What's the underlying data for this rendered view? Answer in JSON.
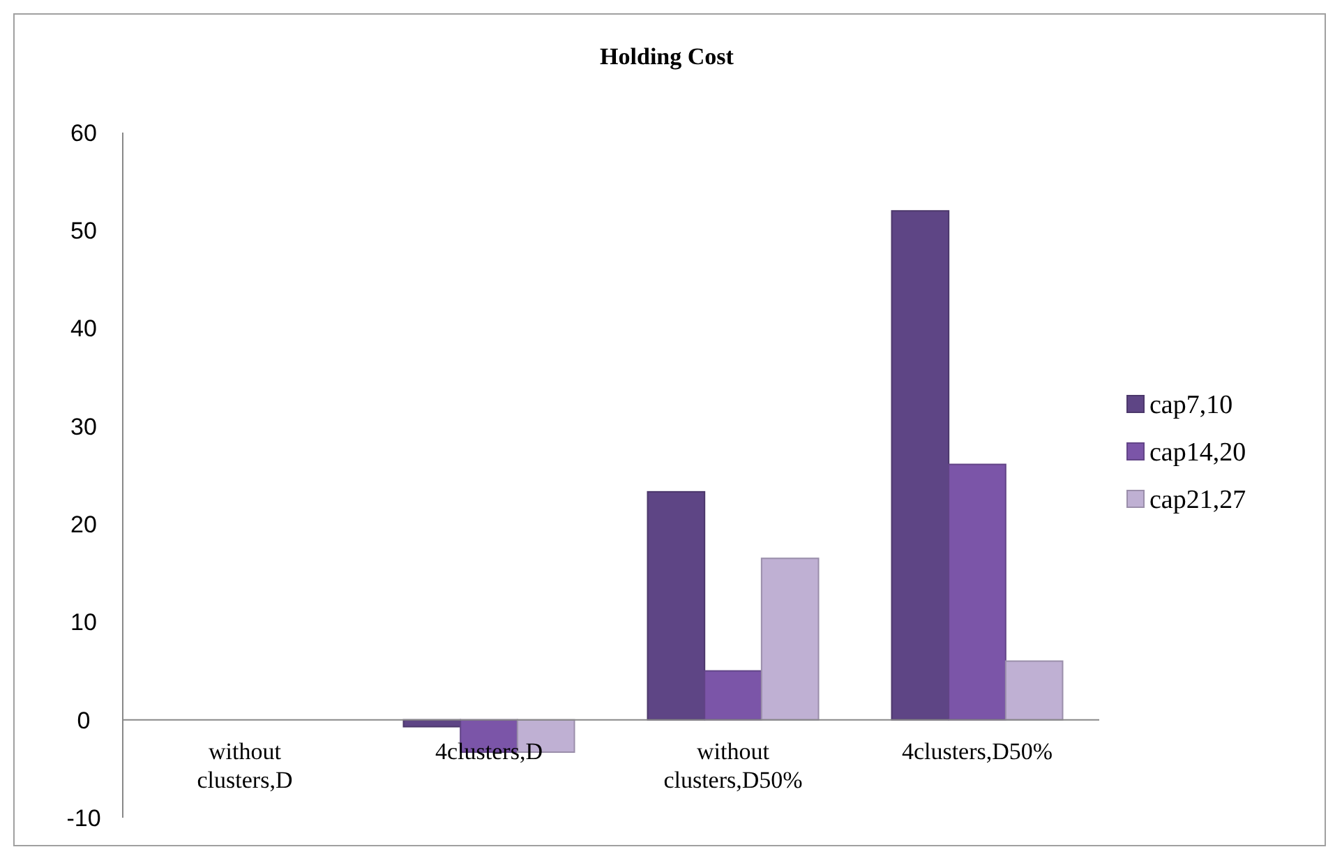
{
  "chart_data": {
    "type": "bar",
    "title": "Holding Cost",
    "categories": [
      "without clusters,D",
      "4clusters,D",
      "without clusters,D50%",
      "4clusters,D50%"
    ],
    "series": [
      {
        "name": "cap7,10",
        "color": "#5e4585",
        "values": [
          0,
          -0.7,
          23.3,
          52
        ]
      },
      {
        "name": "cap14,20",
        "color": "#7b55a8",
        "values": [
          0,
          -3.3,
          5,
          26.1
        ]
      },
      {
        "name": "cap21,27",
        "color": "#bfb0d3",
        "values": [
          0,
          -3.3,
          16.5,
          6
        ]
      }
    ],
    "ylim": [
      -10,
      60
    ],
    "yticks": [
      -10,
      0,
      10,
      20,
      30,
      40,
      50,
      60
    ],
    "grid": false,
    "legend": "right"
  }
}
